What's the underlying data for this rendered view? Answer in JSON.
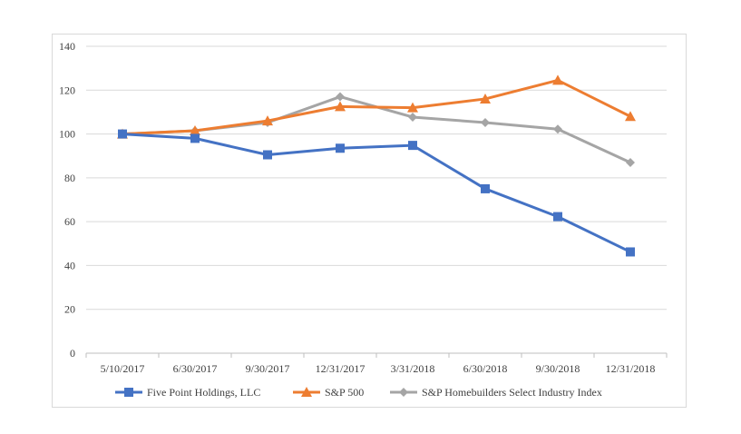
{
  "chart_data": {
    "type": "line",
    "title": "",
    "xlabel": "",
    "ylabel": "",
    "categories": [
      "5/10/2017",
      "6/30/2017",
      "9/30/2017",
      "12/31/2017",
      "3/31/2018",
      "6/30/2018",
      "9/30/2018",
      "12/31/2018"
    ],
    "ylim": [
      0,
      140
    ],
    "yticks": [
      "0",
      "20",
      "40",
      "60",
      "80",
      "100",
      "120",
      "140"
    ],
    "grid": true,
    "legend_position": "bottom",
    "series": [
      {
        "name": "Five Point Holdings, LLC",
        "values": [
          100,
          98,
          90.5,
          93.5,
          94.8,
          75,
          62.3,
          46.2
        ],
        "color": "#4472c4",
        "marker": "square"
      },
      {
        "name": "S&P 500",
        "values": [
          100,
          101.5,
          106,
          112.5,
          112,
          116,
          124.5,
          108
        ],
        "color": "#ed7d31",
        "marker": "triangle"
      },
      {
        "name": "S&P Homebuilders Select Industry Index",
        "values": [
          100,
          101.5,
          105.2,
          117,
          107.7,
          105.2,
          102.2,
          87
        ],
        "color": "#a5a5a5",
        "marker": "diamond"
      }
    ]
  }
}
